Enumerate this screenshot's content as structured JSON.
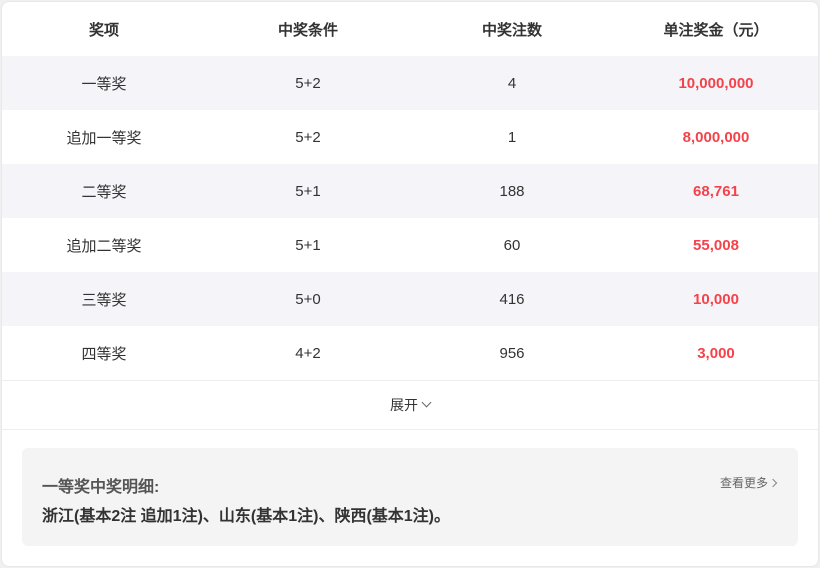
{
  "table": {
    "headers": [
      "奖项",
      "中奖条件",
      "中奖注数",
      "单注奖金（元）"
    ],
    "rows": [
      {
        "prize": "一等奖",
        "condition": "5+2",
        "count": "4",
        "amount": "10,000,000"
      },
      {
        "prize": "追加一等奖",
        "condition": "5+2",
        "count": "1",
        "amount": "8,000,000"
      },
      {
        "prize": "二等奖",
        "condition": "5+1",
        "count": "188",
        "amount": "68,761"
      },
      {
        "prize": "追加二等奖",
        "condition": "5+1",
        "count": "60",
        "amount": "55,008"
      },
      {
        "prize": "三等奖",
        "condition": "5+0",
        "count": "416",
        "amount": "10,000"
      },
      {
        "prize": "四等奖",
        "condition": "4+2",
        "count": "956",
        "amount": "3,000"
      }
    ]
  },
  "expand_label": "展开",
  "detail": {
    "title": "一等奖中奖明细:",
    "more_label": "查看更多",
    "text": "浙江(基本2注 追加1注)、山东(基本1注)、陕西(基本1注)。"
  },
  "colors": {
    "amount": "#f5424a",
    "row_alt": "#f5f5f9"
  }
}
